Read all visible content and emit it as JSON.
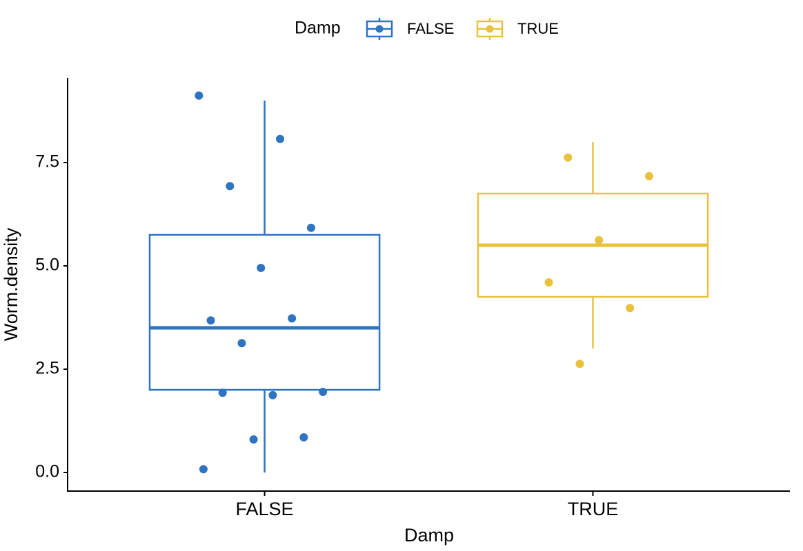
{
  "chart_data": {
    "type": "box",
    "x_label": "Damp",
    "y_label": "Worm.density",
    "legend_title": "Damp",
    "legend_position": "top",
    "categories": [
      "FALSE",
      "TRUE"
    ],
    "ylim": [
      -0.45,
      9.55
    ],
    "yticks": [
      {
        "value": 0,
        "label": "0.0"
      },
      2.5,
      {
        "value": 5,
        "label": "5.0"
      },
      7.5
    ],
    "series": [
      {
        "name": "FALSE",
        "color": "#2f74c0",
        "stats": {
          "min": 0,
          "q1": 2,
          "median": 3.5,
          "q3": 5.75,
          "max": 9
        },
        "points": [
          9.12,
          8.07,
          6.93,
          5.92,
          4.95,
          3.68,
          3.73,
          3.13,
          1.95,
          1.87,
          1.93,
          0.85,
          0.8,
          0.08
        ]
      },
      {
        "name": "TRUE",
        "color": "#e9c13f",
        "stats": {
          "min": 3,
          "q1": 4.25,
          "median": 5.5,
          "q3": 6.75,
          "max": 8
        },
        "points": [
          7.62,
          7.17,
          5.62,
          4.6,
          3.98,
          2.63
        ]
      }
    ]
  }
}
